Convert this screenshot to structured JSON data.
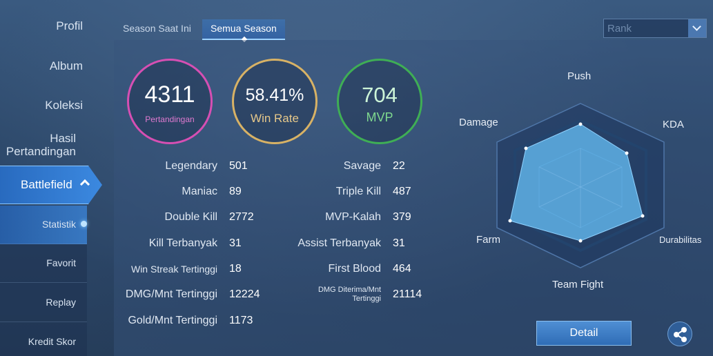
{
  "sidebar": {
    "items": [
      {
        "label": "Profil"
      },
      {
        "label": "Album"
      },
      {
        "label": "Koleksi"
      },
      {
        "label": "Hasil Pertandingan"
      }
    ],
    "active_section": "Battlefield",
    "sub_items": [
      {
        "label": "Statistik"
      },
      {
        "label": "Favorit"
      },
      {
        "label": "Replay"
      },
      {
        "label": "Kredit Skor"
      }
    ]
  },
  "tabs": [
    {
      "label": "Season Saat Ini"
    },
    {
      "label": "Semua Season"
    }
  ],
  "rank_select": {
    "value": "Rank"
  },
  "summary": {
    "matches": {
      "value": "4311",
      "label": "Pertandingan",
      "color": "#d64fb3"
    },
    "win_rate": {
      "value": "58.41%",
      "label": "Win Rate",
      "color": "#d8b265"
    },
    "mvp": {
      "value": "704",
      "label": "MVP",
      "color": "#3fae55"
    }
  },
  "stats_left": [
    {
      "label": "Legendary",
      "value": "501"
    },
    {
      "label": "Maniac",
      "value": "89"
    },
    {
      "label": "Double Kill",
      "value": "2772"
    },
    {
      "label": "Kill Terbanyak",
      "value": "31"
    },
    {
      "label": "Win Streak Tertinggi",
      "value": "18"
    },
    {
      "label": "DMG/Mnt Tertinggi",
      "value": "12224"
    },
    {
      "label": "Gold/Mnt Tertinggi",
      "value": "1173"
    }
  ],
  "stats_right": [
    {
      "label": "Savage",
      "value": "22"
    },
    {
      "label": "Triple Kill",
      "value": "487"
    },
    {
      "label": "MVP-Kalah",
      "value": "379"
    },
    {
      "label": "Assist Terbanyak",
      "value": "31"
    },
    {
      "label": "First Blood",
      "value": "464"
    },
    {
      "label": "DMG Diterima/Mnt Tertinggi",
      "value": "21114"
    }
  ],
  "radar": {
    "axes": [
      "Push",
      "KDA",
      "Durabilitas",
      "Team Fight",
      "Farm",
      "Damage"
    ],
    "fill_color": "#5fb2e6"
  },
  "detail_button": {
    "label": "Detail"
  },
  "icons": {
    "share": "share-icon"
  }
}
